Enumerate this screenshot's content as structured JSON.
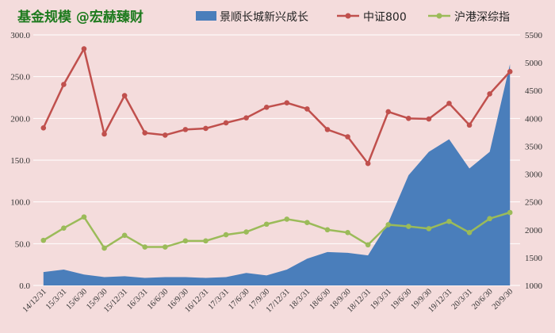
{
  "chart_data": {
    "type": "line",
    "title": "基金规模 @宏赫臻财",
    "legend_placement": "top",
    "categories": [
      "14/12/31",
      "15/3/31",
      "15/6/30",
      "15/9/30",
      "15/12/31",
      "16/3/31",
      "16/6/30",
      "16/9/30",
      "16/12/31",
      "17/3/31",
      "17/6/30",
      "17/9/30",
      "17/12/31",
      "18/3/31",
      "18/6/30",
      "18/9/30",
      "18/12/31",
      "19/3/31",
      "19/6/30",
      "19/9/30",
      "19/12/31",
      "20/3/31",
      "20/6/30",
      "20/9/30"
    ],
    "y_left": {
      "min": 0,
      "max": 300,
      "ticks": [
        "0.0",
        "50.0",
        "100.0",
        "150.0",
        "200.0",
        "250.0",
        "300.0"
      ]
    },
    "y_right": {
      "min": 1000,
      "max": 5500,
      "ticks": [
        "1000",
        "1500",
        "2000",
        "2500",
        "3000",
        "3500",
        "4000",
        "4500",
        "5000",
        "5500"
      ]
    },
    "series": [
      {
        "name": "景顺长城新兴成长",
        "type": "area",
        "axis": "left",
        "color": "#4a7ebb",
        "values": [
          16,
          19,
          13,
          10,
          11,
          9,
          10,
          10,
          9,
          10,
          15,
          12,
          19,
          32,
          40,
          39,
          36,
          75,
          132,
          160,
          175,
          140,
          160,
          265
        ]
      },
      {
        "name": "中证800",
        "type": "line",
        "axis": "right",
        "color": "#c0504d",
        "values": [
          3830,
          4610,
          5250,
          3720,
          4410,
          3740,
          3700,
          3800,
          3820,
          3920,
          4010,
          4200,
          4280,
          4170,
          3800,
          3670,
          3190,
          4120,
          4000,
          3990,
          4270,
          3880,
          4440,
          4840
        ]
      },
      {
        "name": "沪港深综指",
        "type": "line",
        "axis": "right",
        "color": "#9bbb59",
        "values": [
          1810,
          2030,
          2230,
          1670,
          1900,
          1690,
          1690,
          1800,
          1800,
          1910,
          1960,
          2100,
          2190,
          2130,
          2000,
          1950,
          1730,
          2090,
          2060,
          2020,
          2150,
          1950,
          2200,
          2310
        ]
      }
    ],
    "grid": true
  }
}
